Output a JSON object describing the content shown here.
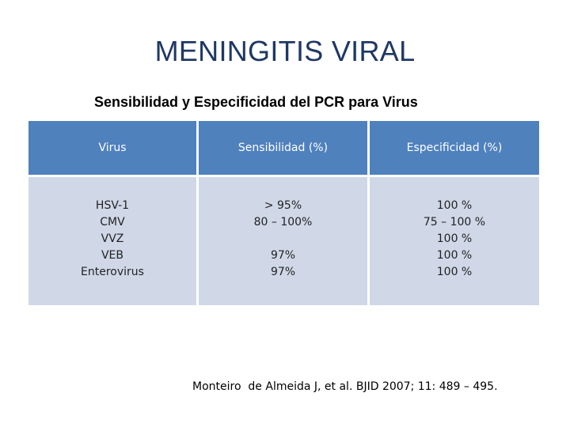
{
  "title": "MENINGITIS VIRAL",
  "subtitle": "Sensibilidad y Especificidad del PCR para Virus",
  "colors": {
    "title": "#1f3864",
    "header_bg": "#4f81bd",
    "body_bg": "#d0d8e8"
  },
  "table": {
    "headers": [
      "Virus",
      "Sensibilidad (%)",
      "Especificidad (%)"
    ],
    "columns": [
      [
        "HSV-1",
        "CMV",
        "VVZ",
        "VEB",
        "Enterovirus"
      ],
      [
        "> 95%",
        "80 – 100%",
        "",
        "97%",
        "97%"
      ],
      [
        "100 %",
        "75 – 100 %",
        "100 %",
        "100 %",
        "100 %"
      ]
    ]
  },
  "citation": "Monteiro  de Almeida J, et al. BJID 2007; 11: 489 – 495."
}
